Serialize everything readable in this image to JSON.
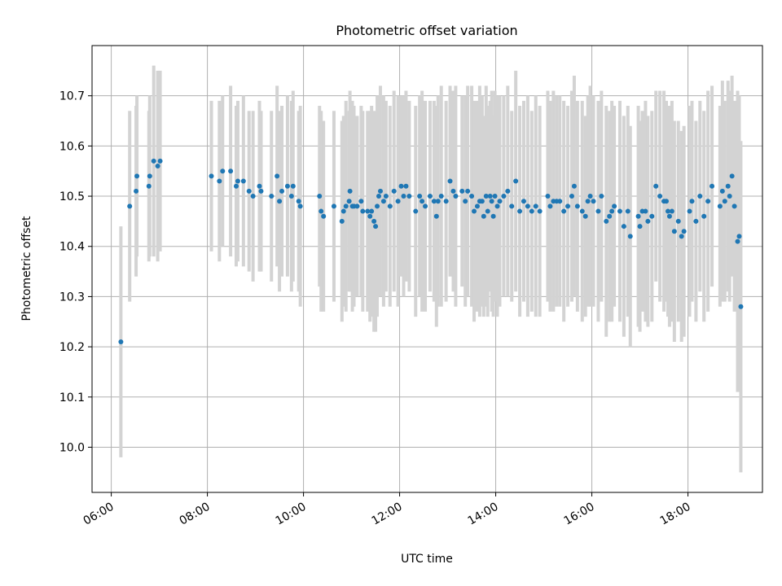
{
  "chart_data": {
    "type": "scatter",
    "title": "Photometric offset variation",
    "xlabel": "UTC time",
    "ylabel": "Photometric offset",
    "x_ticks": [
      "06:00",
      "08:00",
      "10:00",
      "12:00",
      "14:00",
      "16:00",
      "18:00"
    ],
    "y_ticks": [
      "10.0",
      "10.1",
      "10.2",
      "10.3",
      "10.4",
      "10.5",
      "10.6",
      "10.7"
    ],
    "xlim": [
      "05:36",
      "19:33"
    ],
    "ylim": [
      9.91,
      10.8
    ],
    "grid": true,
    "colors": {
      "point": "#1f77b4",
      "errorbar": "#d3d3d3",
      "grid": "#b0b0b0"
    },
    "series": [
      {
        "x": [
          "06:12",
          "06:23",
          "06:31",
          "06:32",
          "06:47",
          "06:48",
          "06:53",
          "06:58",
          "07:01",
          "08:05",
          "08:15",
          "08:19",
          "08:29",
          "08:36",
          "08:38",
          "08:45",
          "08:52",
          "08:57",
          "09:05",
          "09:07",
          "09:20",
          "09:27",
          "09:30",
          "09:33",
          "09:40",
          "09:45",
          "09:47",
          "09:54",
          "09:56",
          "10:20",
          "10:22",
          "10:25",
          "10:38",
          "10:48",
          "10:50",
          "10:53",
          "10:57",
          "10:58",
          "11:01",
          "11:03",
          "11:07",
          "11:12",
          "11:14",
          "11:20",
          "11:23",
          "11:25",
          "11:28",
          "11:30",
          "11:32",
          "11:34",
          "11:36",
          "11:40",
          "11:43",
          "11:48",
          "11:53",
          "11:58",
          "12:02",
          "12:05",
          "12:08",
          "12:12",
          "12:20",
          "12:25",
          "12:28",
          "12:32",
          "12:38",
          "12:43",
          "12:46",
          "12:48",
          "12:52",
          "12:58",
          "13:03",
          "13:07",
          "13:10",
          "13:18",
          "13:22",
          "13:25",
          "13:30",
          "13:33",
          "13:37",
          "13:40",
          "13:43",
          "13:45",
          "13:48",
          "13:50",
          "13:53",
          "13:55",
          "13:57",
          "13:59",
          "14:02",
          "14:05",
          "14:10",
          "14:15",
          "14:20",
          "14:25",
          "14:30",
          "14:35",
          "14:40",
          "14:45",
          "14:50",
          "14:55",
          "15:05",
          "15:08",
          "15:12",
          "15:16",
          "15:20",
          "15:25",
          "15:30",
          "15:35",
          "15:38",
          "15:42",
          "15:48",
          "15:52",
          "15:55",
          "15:58",
          "16:02",
          "16:08",
          "16:12",
          "16:18",
          "16:22",
          "16:25",
          "16:28",
          "16:35",
          "16:40",
          "16:45",
          "16:48",
          "16:58",
          "17:00",
          "17:03",
          "17:07",
          "17:10",
          "17:15",
          "17:20",
          "17:25",
          "17:30",
          "17:33",
          "17:35",
          "17:37",
          "17:40",
          "17:43",
          "17:48",
          "17:52",
          "17:55",
          "18:02",
          "18:05",
          "18:10",
          "18:15",
          "18:20",
          "18:25",
          "18:30",
          "18:40",
          "18:43",
          "18:46",
          "18:50",
          "18:52",
          "18:55",
          "18:58",
          "19:02",
          "19:04",
          "19:06"
        ],
        "y": [
          10.21,
          10.48,
          10.51,
          10.54,
          10.52,
          10.54,
          10.57,
          10.56,
          10.57,
          10.54,
          10.53,
          10.55,
          10.55,
          10.52,
          10.53,
          10.53,
          10.51,
          10.5,
          10.52,
          10.51,
          10.5,
          10.54,
          10.49,
          10.51,
          10.52,
          10.5,
          10.52,
          10.49,
          10.48,
          10.5,
          10.47,
          10.46,
          10.48,
          10.45,
          10.47,
          10.48,
          10.49,
          10.51,
          10.48,
          10.48,
          10.48,
          10.49,
          10.47,
          10.47,
          10.46,
          10.47,
          10.45,
          10.44,
          10.48,
          10.5,
          10.51,
          10.49,
          10.5,
          10.48,
          10.51,
          10.49,
          10.52,
          10.5,
          10.52,
          10.5,
          10.47,
          10.5,
          10.49,
          10.48,
          10.5,
          10.49,
          10.46,
          10.49,
          10.5,
          10.49,
          10.53,
          10.51,
          10.5,
          10.51,
          10.49,
          10.51,
          10.5,
          10.47,
          10.48,
          10.49,
          10.49,
          10.46,
          10.5,
          10.47,
          10.5,
          10.49,
          10.46,
          10.5,
          10.48,
          10.49,
          10.5,
          10.51,
          10.48,
          10.53,
          10.47,
          10.49,
          10.48,
          10.47,
          10.48,
          10.47,
          10.5,
          10.48,
          10.49,
          10.49,
          10.49,
          10.47,
          10.48,
          10.5,
          10.52,
          10.48,
          10.47,
          10.46,
          10.49,
          10.5,
          10.49,
          10.47,
          10.5,
          10.45,
          10.46,
          10.47,
          10.48,
          10.47,
          10.44,
          10.47,
          10.42,
          10.46,
          10.44,
          10.47,
          10.47,
          10.45,
          10.46,
          10.52,
          10.5,
          10.49,
          10.49,
          10.47,
          10.46,
          10.47,
          10.43,
          10.45,
          10.42,
          10.43,
          10.47,
          10.49,
          10.45,
          10.5,
          10.46,
          10.49,
          10.52,
          10.48,
          10.51,
          10.49,
          10.52,
          10.5,
          10.54,
          10.48,
          10.41,
          10.42,
          10.28
        ],
        "err": [
          0.23,
          0.19,
          0.17,
          0.16,
          0.15,
          0.16,
          0.19,
          0.19,
          0.18,
          0.15,
          0.16,
          0.15,
          0.17,
          0.16,
          0.16,
          0.17,
          0.16,
          0.17,
          0.17,
          0.16,
          0.17,
          0.18,
          0.18,
          0.17,
          0.18,
          0.19,
          0.19,
          0.18,
          0.2,
          0.18,
          0.2,
          0.19,
          0.19,
          0.2,
          0.19,
          0.21,
          0.18,
          0.2,
          0.21,
          0.2,
          0.18,
          0.19,
          0.2,
          0.2,
          0.21,
          0.21,
          0.22,
          0.21,
          0.22,
          0.2,
          0.21,
          0.21,
          0.19,
          0.2,
          0.2,
          0.21,
          0.18,
          0.2,
          0.19,
          0.19,
          0.21,
          0.2,
          0.22,
          0.21,
          0.19,
          0.2,
          0.22,
          0.21,
          0.22,
          0.2,
          0.19,
          0.2,
          0.22,
          0.19,
          0.21,
          0.21,
          0.22,
          0.22,
          0.21,
          0.23,
          0.21,
          0.2,
          0.22,
          0.21,
          0.19,
          0.22,
          0.2,
          0.21,
          0.22,
          0.21,
          0.2,
          0.21,
          0.19,
          0.22,
          0.21,
          0.2,
          0.22,
          0.2,
          0.22,
          0.21,
          0.21,
          0.21,
          0.22,
          0.21,
          0.21,
          0.22,
          0.2,
          0.21,
          0.22,
          0.21,
          0.22,
          0.2,
          0.21,
          0.22,
          0.21,
          0.22,
          0.21,
          0.23,
          0.21,
          0.22,
          0.2,
          0.22,
          0.22,
          0.21,
          0.22,
          0.22,
          0.21,
          0.2,
          0.22,
          0.21,
          0.21,
          0.19,
          0.21,
          0.22,
          0.2,
          0.21,
          0.22,
          0.22,
          0.22,
          0.2,
          0.21,
          0.21,
          0.21,
          0.2,
          0.2,
          0.19,
          0.21,
          0.22,
          0.2,
          0.2,
          0.22,
          0.2,
          0.21,
          0.21,
          0.2,
          0.21,
          0.3,
          0.28,
          0.33
        ]
      }
    ]
  }
}
